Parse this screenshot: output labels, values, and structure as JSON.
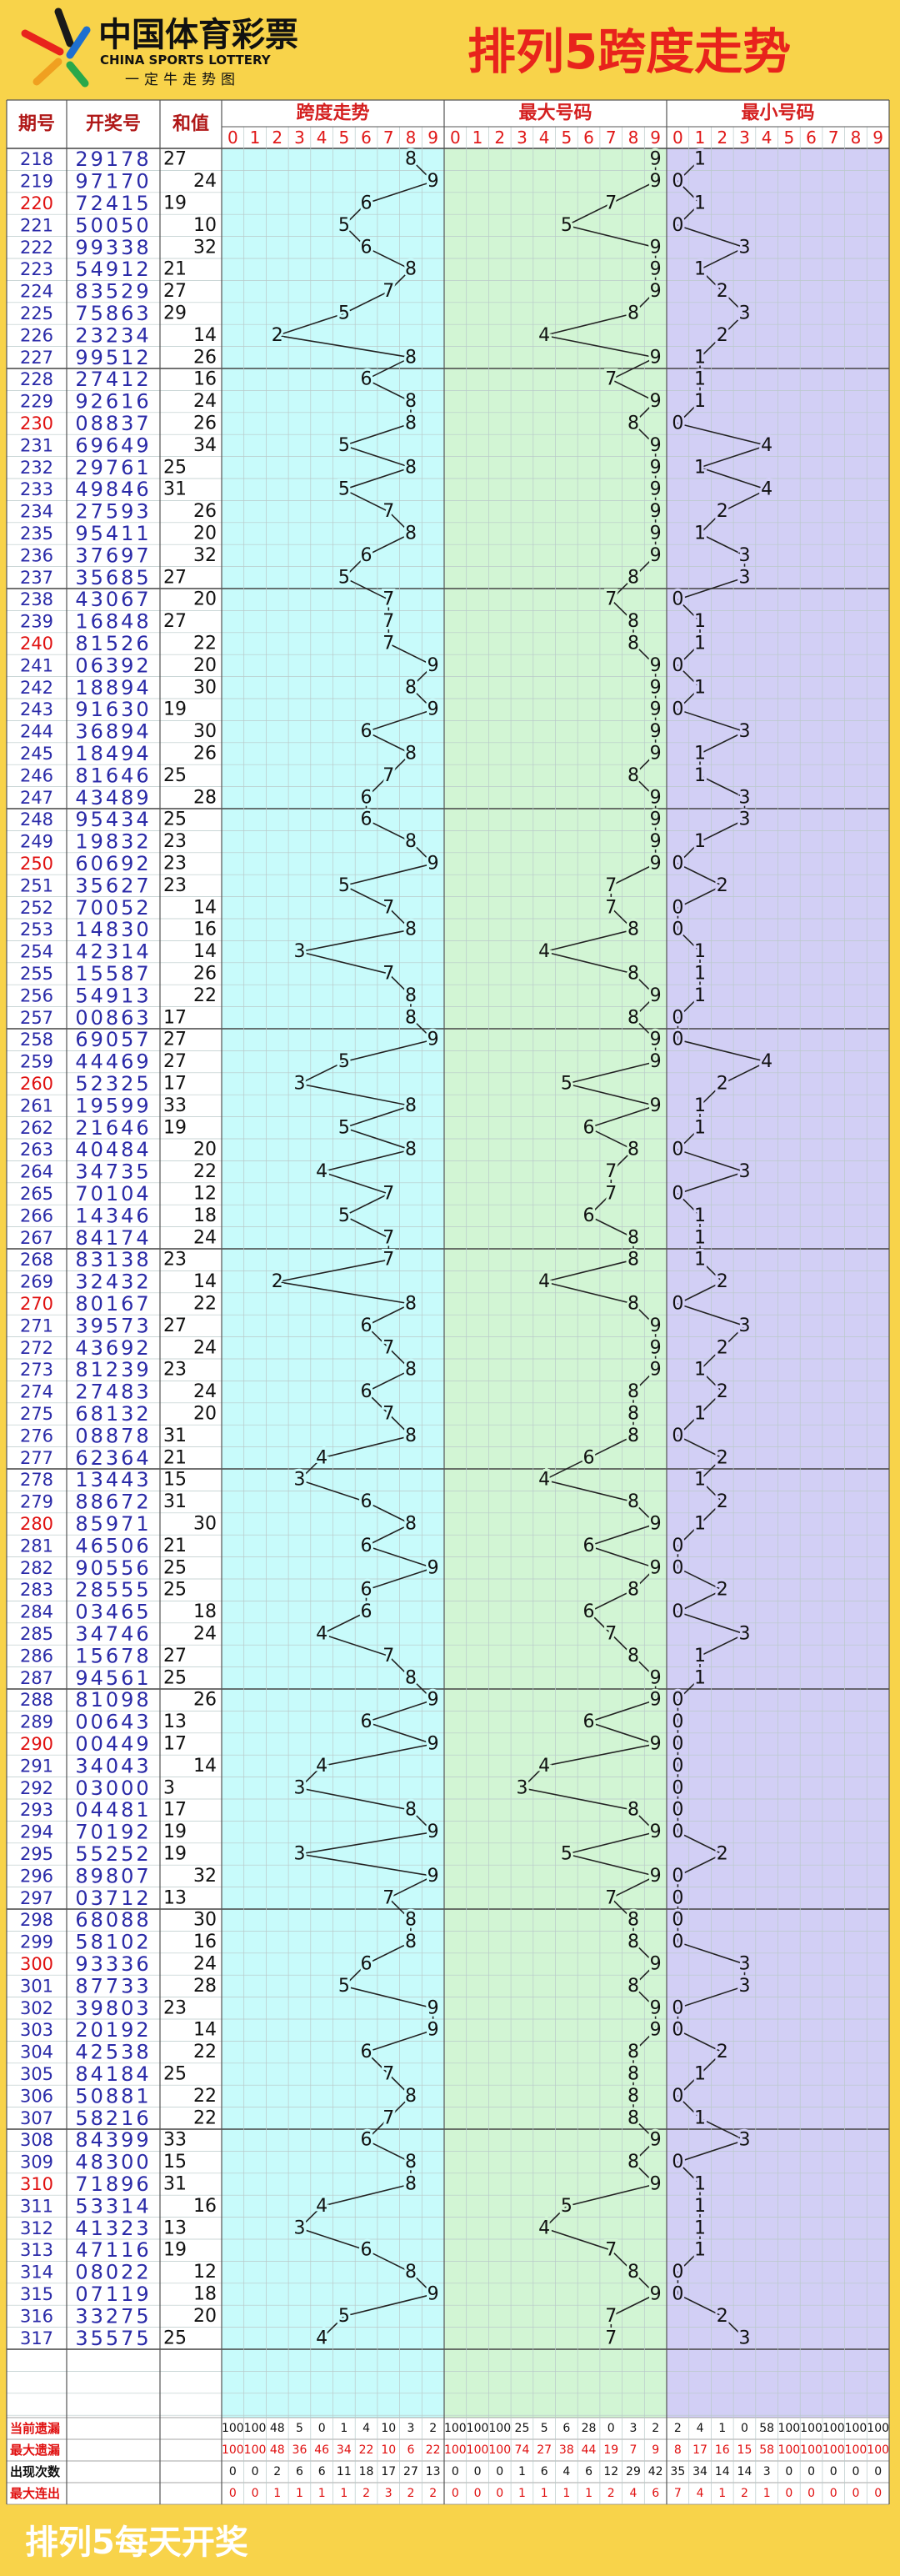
{
  "header": {
    "logo": "中国体育彩票",
    "logo_en": "CHINA SPORTS LOTTERY",
    "slogan": "一定牛走势图",
    "title": "排列5跨度走势"
  },
  "table": {
    "headers": [
      "期号",
      "开奖号",
      "和值",
      "跨度走势",
      "最大号码",
      "最小号码"
    ],
    "digits": [
      0,
      1,
      2,
      3,
      4,
      5,
      6,
      7,
      8,
      9
    ],
    "rows": [
      [
        "218",
        "29178",
        27,
        8,
        9,
        1
      ],
      [
        "219",
        "97170",
        24,
        9,
        9,
        0
      ],
      [
        "220",
        "72415",
        19,
        6,
        7,
        1
      ],
      [
        "221",
        "50050",
        10,
        5,
        5,
        0
      ],
      [
        "222",
        "99338",
        32,
        6,
        9,
        3
      ],
      [
        "223",
        "54912",
        21,
        8,
        9,
        1
      ],
      [
        "224",
        "83529",
        27,
        7,
        9,
        2
      ],
      [
        "225",
        "75863",
        29,
        5,
        8,
        3
      ],
      [
        "226",
        "23234",
        14,
        2,
        4,
        2
      ],
      [
        "227",
        "99512",
        26,
        8,
        9,
        1
      ],
      [
        "228",
        "27412",
        16,
        6,
        7,
        1
      ],
      [
        "229",
        "92616",
        24,
        8,
        9,
        1
      ],
      [
        "230",
        "08837",
        26,
        8,
        8,
        0
      ],
      [
        "231",
        "69649",
        34,
        5,
        9,
        4
      ],
      [
        "232",
        "29761",
        25,
        8,
        9,
        1
      ],
      [
        "233",
        "49846",
        31,
        5,
        9,
        4
      ],
      [
        "234",
        "27593",
        26,
        7,
        9,
        2
      ],
      [
        "235",
        "95411",
        20,
        8,
        9,
        1
      ],
      [
        "236",
        "37697",
        32,
        6,
        9,
        3
      ],
      [
        "237",
        "35685",
        27,
        5,
        8,
        3
      ],
      [
        "238",
        "43067",
        20,
        7,
        7,
        0
      ],
      [
        "239",
        "16848",
        27,
        7,
        8,
        1
      ],
      [
        "240",
        "81526",
        22,
        7,
        8,
        1
      ],
      [
        "241",
        "06392",
        20,
        9,
        9,
        0
      ],
      [
        "242",
        "18894",
        30,
        8,
        9,
        1
      ],
      [
        "243",
        "91630",
        19,
        9,
        9,
        0
      ],
      [
        "244",
        "36894",
        30,
        6,
        9,
        3
      ],
      [
        "245",
        "18494",
        26,
        8,
        9,
        1
      ],
      [
        "246",
        "81646",
        25,
        7,
        8,
        1
      ],
      [
        "247",
        "43489",
        28,
        6,
        9,
        3
      ],
      [
        "248",
        "95434",
        25,
        6,
        9,
        3
      ],
      [
        "249",
        "19832",
        23,
        8,
        9,
        1
      ],
      [
        "250",
        "60692",
        23,
        9,
        9,
        0
      ],
      [
        "251",
        "35627",
        23,
        5,
        7,
        2
      ],
      [
        "252",
        "70052",
        14,
        7,
        7,
        0
      ],
      [
        "253",
        "14830",
        16,
        8,
        8,
        0
      ],
      [
        "254",
        "42314",
        14,
        3,
        4,
        1
      ],
      [
        "255",
        "15587",
        26,
        7,
        8,
        1
      ],
      [
        "256",
        "54913",
        22,
        8,
        9,
        1
      ],
      [
        "257",
        "00863",
        17,
        8,
        8,
        0
      ],
      [
        "258",
        "69057",
        27,
        9,
        9,
        0
      ],
      [
        "259",
        "44469",
        27,
        5,
        9,
        4
      ],
      [
        "260",
        "52325",
        17,
        3,
        5,
        2
      ],
      [
        "261",
        "19599",
        33,
        8,
        9,
        1
      ],
      [
        "262",
        "21646",
        19,
        5,
        6,
        1
      ],
      [
        "263",
        "40484",
        20,
        8,
        8,
        0
      ],
      [
        "264",
        "34735",
        22,
        4,
        7,
        3
      ],
      [
        "265",
        "70104",
        12,
        7,
        7,
        0
      ],
      [
        "266",
        "14346",
        18,
        5,
        6,
        1
      ],
      [
        "267",
        "84174",
        24,
        7,
        8,
        1
      ],
      [
        "268",
        "83138",
        23,
        7,
        8,
        1
      ],
      [
        "269",
        "32432",
        14,
        2,
        4,
        2
      ],
      [
        "270",
        "80167",
        22,
        8,
        8,
        0
      ],
      [
        "271",
        "39573",
        27,
        6,
        9,
        3
      ],
      [
        "272",
        "43692",
        24,
        7,
        9,
        2
      ],
      [
        "273",
        "81239",
        23,
        8,
        9,
        1
      ],
      [
        "274",
        "27483",
        24,
        6,
        8,
        2
      ],
      [
        "275",
        "68132",
        20,
        7,
        8,
        1
      ],
      [
        "276",
        "08878",
        31,
        8,
        8,
        0
      ],
      [
        "277",
        "62364",
        21,
        4,
        6,
        2
      ],
      [
        "278",
        "13443",
        15,
        3,
        4,
        1
      ],
      [
        "279",
        "88672",
        31,
        6,
        8,
        2
      ],
      [
        "280",
        "85971",
        30,
        8,
        9,
        1
      ],
      [
        "281",
        "46506",
        21,
        6,
        6,
        0
      ],
      [
        "282",
        "90556",
        25,
        9,
        9,
        0
      ],
      [
        "283",
        "28555",
        25,
        6,
        8,
        2
      ],
      [
        "284",
        "03465",
        18,
        6,
        6,
        0
      ],
      [
        "285",
        "34746",
        24,
        4,
        7,
        3
      ],
      [
        "286",
        "15678",
        27,
        7,
        8,
        1
      ],
      [
        "287",
        "94561",
        25,
        8,
        9,
        1
      ],
      [
        "288",
        "81098",
        26,
        9,
        9,
        0
      ],
      [
        "289",
        "00643",
        13,
        6,
        6,
        0
      ],
      [
        "290",
        "00449",
        17,
        9,
        9,
        0
      ],
      [
        "291",
        "34043",
        14,
        4,
        4,
        0
      ],
      [
        "292",
        "03000",
        3,
        3,
        3,
        0
      ],
      [
        "293",
        "04481",
        17,
        8,
        8,
        0
      ],
      [
        "294",
        "70192",
        19,
        9,
        9,
        0
      ],
      [
        "295",
        "55252",
        19,
        3,
        5,
        2
      ],
      [
        "296",
        "89807",
        32,
        9,
        9,
        0
      ],
      [
        "297",
        "03712",
        13,
        7,
        7,
        0
      ],
      [
        "298",
        "68088",
        30,
        8,
        8,
        0
      ],
      [
        "299",
        "58102",
        16,
        8,
        8,
        0
      ],
      [
        "300",
        "93336",
        24,
        6,
        9,
        3
      ],
      [
        "301",
        "87733",
        28,
        5,
        8,
        3
      ],
      [
        "302",
        "39803",
        23,
        9,
        9,
        0
      ],
      [
        "303",
        "20192",
        14,
        9,
        9,
        0
      ],
      [
        "304",
        "42538",
        22,
        6,
        8,
        2
      ],
      [
        "305",
        "84184",
        25,
        7,
        8,
        1
      ],
      [
        "306",
        "50881",
        22,
        8,
        8,
        0
      ],
      [
        "307",
        "58216",
        22,
        7,
        8,
        1
      ],
      [
        "308",
        "84399",
        33,
        6,
        9,
        3
      ],
      [
        "309",
        "48300",
        15,
        8,
        8,
        0
      ],
      [
        "310",
        "71896",
        31,
        8,
        9,
        1
      ],
      [
        "311",
        "53314",
        16,
        4,
        5,
        1
      ],
      [
        "312",
        "41323",
        13,
        3,
        4,
        1
      ],
      [
        "313",
        "47116",
        19,
        6,
        7,
        1
      ],
      [
        "314",
        "08022",
        12,
        8,
        8,
        0
      ],
      [
        "315",
        "07119",
        18,
        9,
        9,
        0
      ],
      [
        "316",
        "33275",
        20,
        5,
        7,
        2
      ],
      [
        "317",
        "35575",
        25,
        4,
        7,
        3
      ]
    ],
    "stats": [
      {
        "label": "当前遗漏",
        "values": [
          100,
          100,
          48,
          5,
          0,
          1,
          4,
          10,
          3,
          2,
          100,
          100,
          100,
          25,
          5,
          6,
          28,
          0,
          3,
          2,
          2,
          4,
          1,
          0,
          58,
          100,
          100,
          100,
          100,
          100
        ]
      },
      {
        "label": "最大遗漏",
        "values": [
          100,
          100,
          48,
          36,
          46,
          34,
          22,
          10,
          6,
          22,
          100,
          100,
          100,
          74,
          27,
          38,
          44,
          19,
          7,
          9,
          8,
          17,
          16,
          15,
          58,
          100,
          100,
          100,
          100,
          100
        ]
      },
      {
        "label": "出现次数",
        "values": [
          0,
          0,
          2,
          6,
          6,
          11,
          18,
          17,
          27,
          13,
          0,
          0,
          0,
          1,
          6,
          4,
          6,
          12,
          29,
          42,
          35,
          34,
          14,
          14,
          3,
          0,
          0,
          0,
          0,
          0
        ]
      },
      {
        "label": "最大连出",
        "values": [
          0,
          0,
          1,
          1,
          1,
          1,
          2,
          3,
          2,
          2,
          0,
          0,
          0,
          1,
          1,
          1,
          1,
          2,
          4,
          6,
          7,
          4,
          1,
          2,
          1,
          0,
          0,
          0,
          0,
          0
        ]
      }
    ]
  },
  "footer": "排列5每天开奖"
}
